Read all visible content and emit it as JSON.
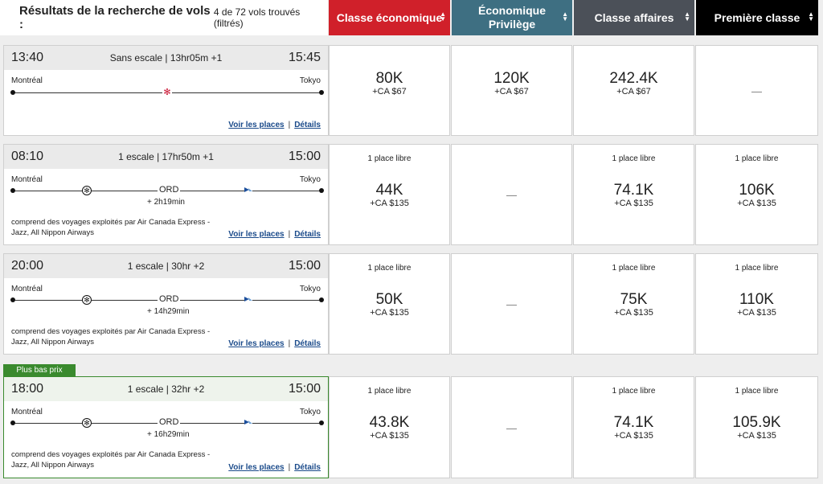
{
  "header": {
    "title": "Résultats de la recherche de vols :",
    "subtitle": "4 de 72 vols trouvés (filtrés)",
    "columns": [
      {
        "label": "Classe économique"
      },
      {
        "label": "Économique Privilège"
      },
      {
        "label": "Classe affaires"
      },
      {
        "label": "Première classe"
      }
    ]
  },
  "colors": {
    "economy": "#d0202a",
    "premium": "#3e6f82",
    "business": "#4b5058",
    "first": "#000000",
    "best": "#3a8a2e"
  },
  "links": {
    "seats": "Voir les places",
    "separator": "|",
    "details": "Détails"
  },
  "badge": "Plus bas prix",
  "flights": [
    {
      "depart": "13:40",
      "arrive": "15:45",
      "summary": "Sans escale | 13hr05m +1",
      "origin": "Montréal",
      "destination": "Tokyo",
      "fares": [
        {
          "seats": "",
          "miles": "80K",
          "tax": "+CA $67"
        },
        {
          "seats": "",
          "miles": "120K",
          "tax": "+CA $67"
        },
        {
          "seats": "",
          "miles": "242.4K",
          "tax": "+CA $67"
        },
        {
          "none": "—"
        }
      ]
    },
    {
      "depart": "08:10",
      "arrive": "15:00",
      "summary": "1 escale | 17hr50m +1",
      "origin": "Montréal",
      "destination": "Tokyo",
      "stop": "ORD",
      "layover": "+ 2h19min",
      "operated": "comprend des voyages exploités par Air Canada Express - Jazz, All Nippon Airways",
      "fares": [
        {
          "seats": "1 place libre",
          "miles": "44K",
          "tax": "+CA $135"
        },
        {
          "none": "—"
        },
        {
          "seats": "1 place libre",
          "miles": "74.1K",
          "tax": "+CA $135"
        },
        {
          "seats": "1 place libre",
          "miles": "106K",
          "tax": "+CA $135"
        }
      ]
    },
    {
      "depart": "20:00",
      "arrive": "15:00",
      "summary": "1 escale | 30hr +2",
      "origin": "Montréal",
      "destination": "Tokyo",
      "stop": "ORD",
      "layover": "+ 14h29min",
      "operated": "comprend des voyages exploités par Air Canada Express - Jazz, All Nippon Airways",
      "fares": [
        {
          "seats": "1 place libre",
          "miles": "50K",
          "tax": "+CA $135"
        },
        {
          "none": "—"
        },
        {
          "seats": "1 place libre",
          "miles": "75K",
          "tax": "+CA $135"
        },
        {
          "seats": "1 place libre",
          "miles": "110K",
          "tax": "+CA $135"
        }
      ]
    },
    {
      "depart": "18:00",
      "arrive": "15:00",
      "summary": "1 escale | 32hr +2",
      "origin": "Montréal",
      "destination": "Tokyo",
      "stop": "ORD",
      "layover": "+ 16h29min",
      "operated": "comprend des voyages exploités par Air Canada Express - Jazz, All Nippon Airways",
      "fares": [
        {
          "seats": "1 place libre",
          "miles": "43.8K",
          "tax": "+CA $135"
        },
        {
          "none": "—"
        },
        {
          "seats": "1 place libre",
          "miles": "74.1K",
          "tax": "+CA $135"
        },
        {
          "seats": "1 place libre",
          "miles": "105.9K",
          "tax": "+CA $135"
        }
      ]
    }
  ]
}
